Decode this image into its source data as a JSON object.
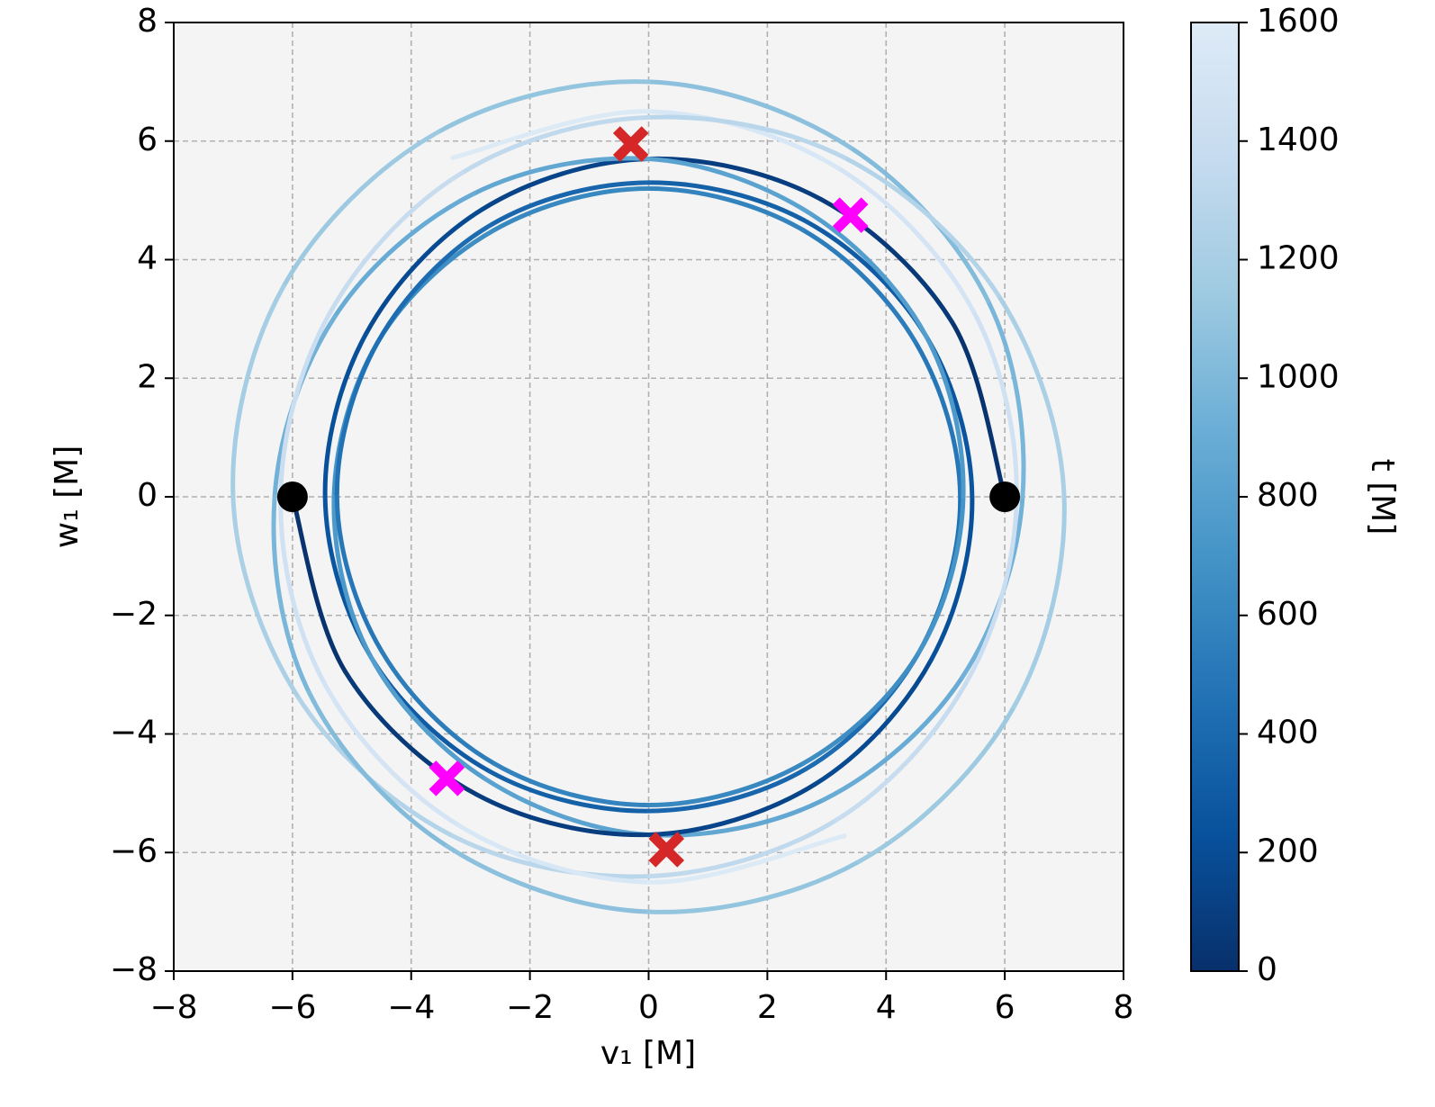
{
  "chart_data": {
    "type": "line",
    "x_label": "v₁ [M]",
    "y_label": "w₁ [M]",
    "colorbar_label": "t [M]",
    "xlim": [
      -8,
      8
    ],
    "ylim": [
      -8,
      8
    ],
    "xticks": [
      {
        "value": -8,
        "label": "−8"
      },
      {
        "value": -6,
        "label": "−6"
      },
      {
        "value": -4,
        "label": "−4"
      },
      {
        "value": -2,
        "label": "−2"
      },
      0,
      2,
      4,
      6,
      8
    ],
    "yticks": [
      {
        "value": -8,
        "label": "−8"
      },
      {
        "value": -6,
        "label": "−6"
      },
      {
        "value": -4,
        "label": "−4"
      },
      {
        "value": -2,
        "label": "−2"
      },
      0,
      2,
      4,
      6,
      8
    ],
    "clim": [
      0,
      1600
    ],
    "cticks": [
      0,
      200,
      400,
      600,
      800,
      1000,
      1200,
      1400,
      1600
    ],
    "colormap": [
      "#08306b",
      "#08519c",
      "#2171b5",
      "#4292c6",
      "#6baed6",
      "#9ecae1",
      "#c6dbef",
      "#deebf7"
    ],
    "grid": true,
    "series": [
      {
        "x": [
          6,
          5.11,
          2.9,
          0,
          -2.8,
          -4.76,
          -5.45,
          -4.68,
          -2.68,
          0,
          2.65,
          4.55,
          5.25,
          4.5,
          2.6,
          0,
          -2.6,
          -4.55,
          -5.3,
          -4.68,
          -2.75,
          0,
          2.95,
          5.28,
          6.3,
          5.72,
          3.4,
          0,
          -3.55,
          -6.15,
          -7,
          -5.89,
          -3.3,
          0,
          3.15,
          5.37,
          6.2,
          5.46,
          3.2,
          0,
          -3.3
        ],
        "y": [
          0,
          2.95,
          5.02,
          5.7,
          4.85,
          2.75,
          0,
          -2.7,
          -4.63,
          -5.3,
          -4.59,
          -2.63,
          0,
          2.6,
          4.5,
          5.2,
          4.5,
          2.63,
          0,
          -2.7,
          -4.76,
          -5.7,
          -5.11,
          -3.05,
          0,
          3.3,
          5.89,
          7,
          6.15,
          3.55,
          0,
          -3.4,
          -5.72,
          -6.4,
          -5.46,
          -3.1,
          0,
          3.15,
          5.54,
          6.5,
          5.72
        ],
        "t": [
          0,
          40,
          80,
          120,
          160,
          200,
          240,
          280,
          320,
          360,
          400,
          440,
          480,
          520,
          560,
          600,
          640,
          680,
          720,
          760,
          800,
          840,
          880,
          920,
          960,
          1000,
          1040,
          1080,
          1120,
          1160,
          1200,
          1240,
          1280,
          1320,
          1360,
          1400,
          1440,
          1480,
          1520,
          1560,
          1600
        ]
      },
      {
        "x": [
          -6,
          -5.11,
          -2.9,
          0,
          2.8,
          4.76,
          5.45,
          4.68,
          2.68,
          0,
          -2.65,
          -4.55,
          -5.25,
          -4.5,
          -2.6,
          0,
          2.6,
          4.55,
          5.3,
          4.68,
          2.75,
          0,
          -2.95,
          -5.28,
          -6.3,
          -5.72,
          -3.4,
          0,
          3.55,
          6.15,
          7,
          5.89,
          3.3,
          0,
          -3.15,
          -5.37,
          -6.2,
          -5.46,
          -3.2,
          0,
          3.3
        ],
        "y": [
          0,
          -2.95,
          -5.02,
          -5.7,
          -4.85,
          -2.75,
          0,
          2.7,
          4.63,
          5.3,
          4.59,
          2.63,
          0,
          -2.6,
          -4.5,
          -5.2,
          -4.5,
          -2.63,
          0,
          2.7,
          4.76,
          5.7,
          5.11,
          3.05,
          0,
          -3.3,
          -5.89,
          -7,
          -6.15,
          -3.55,
          0,
          3.4,
          5.72,
          6.4,
          5.46,
          3.1,
          0,
          -3.15,
          -5.54,
          -6.5,
          -5.72
        ],
        "t": [
          0,
          40,
          80,
          120,
          160,
          200,
          240,
          280,
          320,
          360,
          400,
          440,
          480,
          520,
          560,
          600,
          640,
          680,
          720,
          760,
          800,
          840,
          880,
          920,
          960,
          1000,
          1040,
          1080,
          1120,
          1160,
          1200,
          1240,
          1280,
          1320,
          1360,
          1400,
          1440,
          1480,
          1520,
          1560,
          1600
        ]
      }
    ],
    "markers": [
      {
        "symbol": "circle",
        "color": "#000000",
        "x": [
          -6,
          6
        ],
        "y": [
          0,
          0
        ]
      },
      {
        "symbol": "x",
        "color": "#d62728",
        "x": [
          -0.3,
          0.3
        ],
        "y": [
          5.95,
          -5.95
        ]
      },
      {
        "symbol": "x",
        "color": "#ff00ff",
        "x": [
          3.4,
          -3.4
        ],
        "y": [
          4.75,
          -4.75
        ]
      }
    ]
  }
}
